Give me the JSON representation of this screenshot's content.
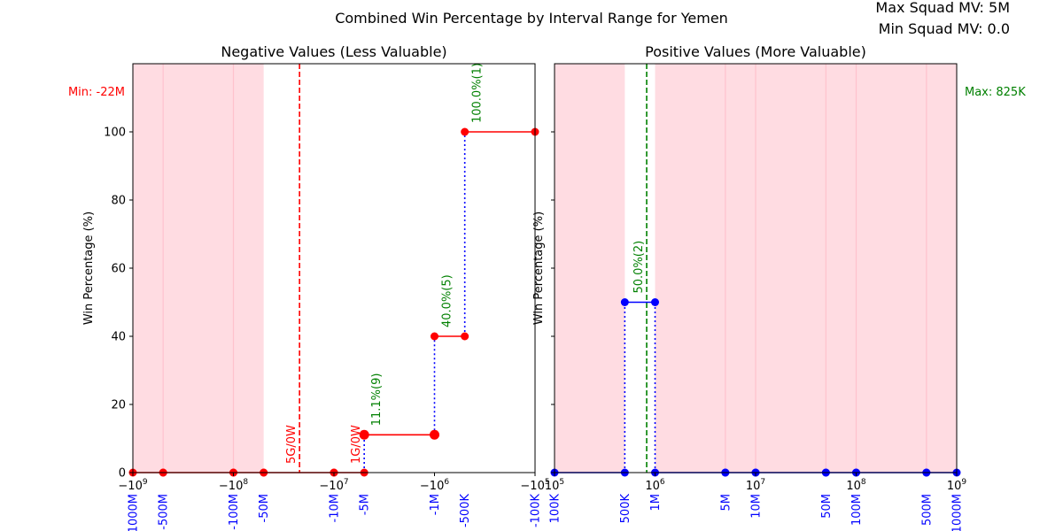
{
  "figure": {
    "title": "Combined Win Percentage by Interval Range for Yemen",
    "max_squad_mv": "Max Squad MV: 5M",
    "min_squad_mv": "Min Squad MV: 0.0"
  },
  "colors": {
    "shade": "#ffc0cb",
    "negative_line": "#ff0000",
    "positive_line": "#0000ff",
    "connector": "#0000ff",
    "annotation_green": "#008000",
    "annotation_red": "#ff0000",
    "custom_tick": "#0000ff"
  },
  "chart_data": [
    {
      "type": "line",
      "panel": "negative",
      "title": "Negative Values (Less Valuable)",
      "ylabel": "Win Percentage (%)",
      "xscale": "symlog",
      "xlim": [
        -1000000000,
        -100000
      ],
      "ylim": [
        0,
        120
      ],
      "yticks": [
        0,
        20,
        40,
        60,
        80,
        100
      ],
      "xticks": [
        {
          "value": -1000000000,
          "base": "−10",
          "exp": "9"
        },
        {
          "value": -100000000,
          "base": "−10",
          "exp": "8"
        },
        {
          "value": -10000000,
          "base": "−10",
          "exp": "7"
        },
        {
          "value": -1000000,
          "base": "−10",
          "exp": "6"
        },
        {
          "value": -100000,
          "base": "−10",
          "exp": "5"
        }
      ],
      "custom_ticks": [
        {
          "value": -1000000000,
          "label": "-1000M"
        },
        {
          "value": -500000000,
          "label": "-500M"
        },
        {
          "value": -100000000,
          "label": "-100M"
        },
        {
          "value": -50000000,
          "label": "-50M"
        },
        {
          "value": -10000000,
          "label": "-10M"
        },
        {
          "value": -5000000,
          "label": "-5M"
        },
        {
          "value": -1000000,
          "label": "-1M"
        },
        {
          "value": -500000,
          "label": "-500K"
        },
        {
          "value": -100000,
          "label": "-100K"
        }
      ],
      "shaded_ranges": [
        {
          "from": -1000000000,
          "to": -500000000
        },
        {
          "from": -500000000,
          "to": -100000000
        },
        {
          "from": -100000000,
          "to": -50000000
        }
      ],
      "gridlines": [
        -500000000,
        -100000000
      ],
      "segments": [
        {
          "x_from": -1000000000,
          "x_to": -500000000,
          "y": 0
        },
        {
          "x_from": -500000000,
          "x_to": -100000000,
          "y": 0
        },
        {
          "x_from": -100000000,
          "x_to": -50000000,
          "y": 0
        },
        {
          "x_from": -50000000,
          "x_to": -10000000,
          "y": 0
        },
        {
          "x_from": -10000000,
          "x_to": -5000000,
          "y": 0
        },
        {
          "x_from": -5000000,
          "x_to": -1000000,
          "y": 11.1
        },
        {
          "x_from": -1000000,
          "x_to": -500000,
          "y": 40.0
        },
        {
          "x_from": -500000,
          "x_to": -100000,
          "y": 100.0
        }
      ],
      "connectors": [
        {
          "x": -5000000,
          "y_from": 0,
          "y_to": 11.1
        },
        {
          "x": -1000000,
          "y_from": 11.1,
          "y_to": 40.0
        },
        {
          "x": -500000,
          "y_from": 40.0,
          "y_to": 100.0
        }
      ],
      "big_markers": [
        {
          "x": -5000000,
          "y": 11.1
        },
        {
          "x": -1000000,
          "y": 11.1
        }
      ],
      "reference_line": {
        "x": -22000000,
        "label": "Min: -22M"
      },
      "annotations": [
        {
          "x": -5000000,
          "y": 11.1,
          "text": "11.1%(9)",
          "color": "green",
          "place": "right"
        },
        {
          "x": -1000000,
          "y": 40.0,
          "text": "40.0%(5)",
          "color": "green",
          "place": "right"
        },
        {
          "x": -500000,
          "y": 100.0,
          "text": "100.0%(1)",
          "color": "green",
          "place": "right"
        },
        {
          "x": -22000000,
          "y": 0,
          "text": "5G/0W",
          "color": "red",
          "place": "left"
        },
        {
          "x": -5000000,
          "y": 0,
          "text": "1G/0W",
          "color": "red",
          "place": "left"
        }
      ]
    },
    {
      "type": "line",
      "panel": "positive",
      "title": "Positive Values (More Valuable)",
      "ylabel": "Win Percentage (%)",
      "xscale": "log",
      "xlim": [
        100000,
        1000000000
      ],
      "ylim": [
        0,
        120
      ],
      "yticks": [
        0,
        20,
        40,
        60,
        80,
        100
      ],
      "xticks": [
        {
          "value": 100000,
          "base": "10",
          "exp": "5"
        },
        {
          "value": 1000000,
          "base": "10",
          "exp": "6"
        },
        {
          "value": 10000000,
          "base": "10",
          "exp": "7"
        },
        {
          "value": 100000000,
          "base": "10",
          "exp": "8"
        },
        {
          "value": 1000000000,
          "base": "10",
          "exp": "9"
        }
      ],
      "custom_ticks": [
        {
          "value": 100000,
          "label": "100K"
        },
        {
          "value": 500000,
          "label": "500K"
        },
        {
          "value": 1000000,
          "label": "1M"
        },
        {
          "value": 5000000,
          "label": "5M"
        },
        {
          "value": 10000000,
          "label": "10M"
        },
        {
          "value": 50000000,
          "label": "50M"
        },
        {
          "value": 100000000,
          "label": "100M"
        },
        {
          "value": 500000000,
          "label": "500M"
        },
        {
          "value": 1000000000,
          "label": "1000M"
        }
      ],
      "shaded_ranges": [
        {
          "from": 100000,
          "to": 500000
        },
        {
          "from": 1000000,
          "to": 5000000
        },
        {
          "from": 5000000,
          "to": 10000000
        },
        {
          "from": 10000000,
          "to": 50000000
        },
        {
          "from": 50000000,
          "to": 100000000
        },
        {
          "from": 100000000,
          "to": 500000000
        },
        {
          "from": 500000000,
          "to": 1000000000
        }
      ],
      "gridlines": [
        5000000,
        10000000,
        50000000,
        100000000,
        500000000
      ],
      "segments": [
        {
          "x_from": 100000,
          "x_to": 500000,
          "y": 0
        },
        {
          "x_from": 500000,
          "x_to": 1000000,
          "y": 50.0
        },
        {
          "x_from": 1000000,
          "x_to": 5000000,
          "y": 0
        },
        {
          "x_from": 5000000,
          "x_to": 10000000,
          "y": 0
        },
        {
          "x_from": 10000000,
          "x_to": 50000000,
          "y": 0
        },
        {
          "x_from": 50000000,
          "x_to": 100000000,
          "y": 0
        },
        {
          "x_from": 100000000,
          "x_to": 500000000,
          "y": 0
        },
        {
          "x_from": 500000000,
          "x_to": 1000000000,
          "y": 0
        }
      ],
      "connectors": [
        {
          "x": 500000,
          "y_from": 0,
          "y_to": 50.0
        },
        {
          "x": 1000000,
          "y_from": 0,
          "y_to": 50.0
        }
      ],
      "big_markers": [],
      "reference_line": {
        "x": 825000,
        "label": "Max: 825K"
      },
      "annotations": [
        {
          "x": 825000,
          "y": 50.0,
          "text": "50.0%(2)",
          "color": "green",
          "place": "left"
        }
      ]
    }
  ]
}
